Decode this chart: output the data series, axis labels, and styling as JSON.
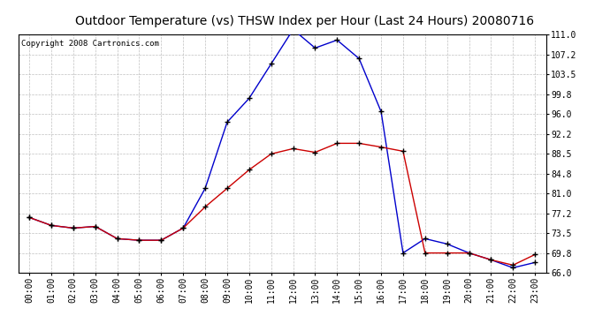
{
  "title": "Outdoor Temperature (vs) THSW Index per Hour (Last 24 Hours) 20080716",
  "copyright": "Copyright 2008 Cartronics.com",
  "hours": [
    "00:00",
    "01:00",
    "02:00",
    "03:00",
    "04:00",
    "05:00",
    "06:00",
    "07:00",
    "08:00",
    "09:00",
    "10:00",
    "11:00",
    "12:00",
    "13:00",
    "14:00",
    "15:00",
    "16:00",
    "17:00",
    "18:00",
    "19:00",
    "20:00",
    "21:00",
    "22:00",
    "23:00"
  ],
  "temp_red": [
    76.5,
    75.0,
    74.5,
    74.8,
    72.5,
    72.2,
    72.2,
    74.5,
    78.5,
    82.0,
    85.5,
    88.5,
    89.5,
    88.8,
    90.5,
    90.5,
    89.8,
    89.0,
    69.8,
    69.8,
    69.8,
    68.5,
    67.5,
    69.5
  ],
  "thsw_blue": [
    76.5,
    75.0,
    74.5,
    74.8,
    72.5,
    72.2,
    72.2,
    74.5,
    82.0,
    94.5,
    99.0,
    105.5,
    112.0,
    108.5,
    110.0,
    106.5,
    96.5,
    69.8,
    72.5,
    71.5,
    69.8,
    68.5,
    67.0,
    68.0
  ],
  "ylim": [
    66.0,
    111.0
  ],
  "yticks": [
    66.0,
    69.8,
    73.5,
    77.2,
    81.0,
    84.8,
    88.5,
    92.2,
    96.0,
    99.8,
    103.5,
    107.2,
    111.0
  ],
  "background_color": "#ffffff",
  "plot_bg_color": "#ffffff",
  "grid_color": "#b0b0b0",
  "line_color_red": "#cc0000",
  "line_color_blue": "#0000cc",
  "marker_color": "#000000",
  "title_fontsize": 10,
  "copyright_fontsize": 6.5,
  "tick_fontsize": 7
}
